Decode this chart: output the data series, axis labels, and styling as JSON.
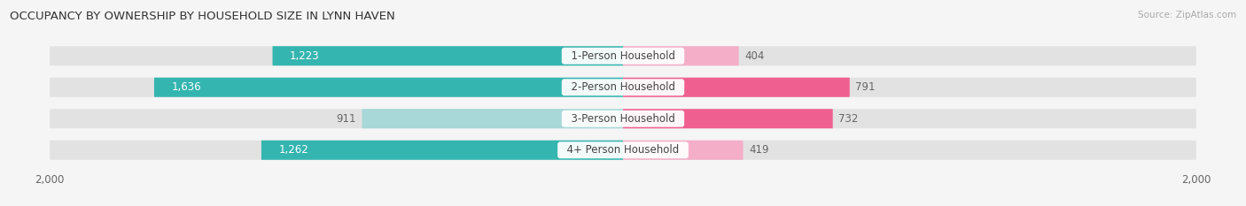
{
  "title": "OCCUPANCY BY OWNERSHIP BY HOUSEHOLD SIZE IN LYNN HAVEN",
  "source": "Source: ZipAtlas.com",
  "categories": [
    "1-Person Household",
    "2-Person Household",
    "3-Person Household",
    "4+ Person Household"
  ],
  "owner_values": [
    1223,
    1636,
    911,
    1262
  ],
  "renter_values": [
    404,
    791,
    732,
    419
  ],
  "owner_color_dark": "#35b5b0",
  "owner_color_light": "#a8d8d8",
  "renter_color_dark": "#ef6090",
  "renter_color_light": "#f5aec8",
  "row_bg_color": "#e2e2e2",
  "axis_max": 2000,
  "bar_height": 0.62,
  "label_fontsize": 8.5,
  "title_fontsize": 9.5,
  "bg_color": "#f5f5f5",
  "text_dark": "#444444",
  "text_mid": "#666666",
  "owner_dark_threshold": 1200,
  "renter_dark_threshold": 700
}
